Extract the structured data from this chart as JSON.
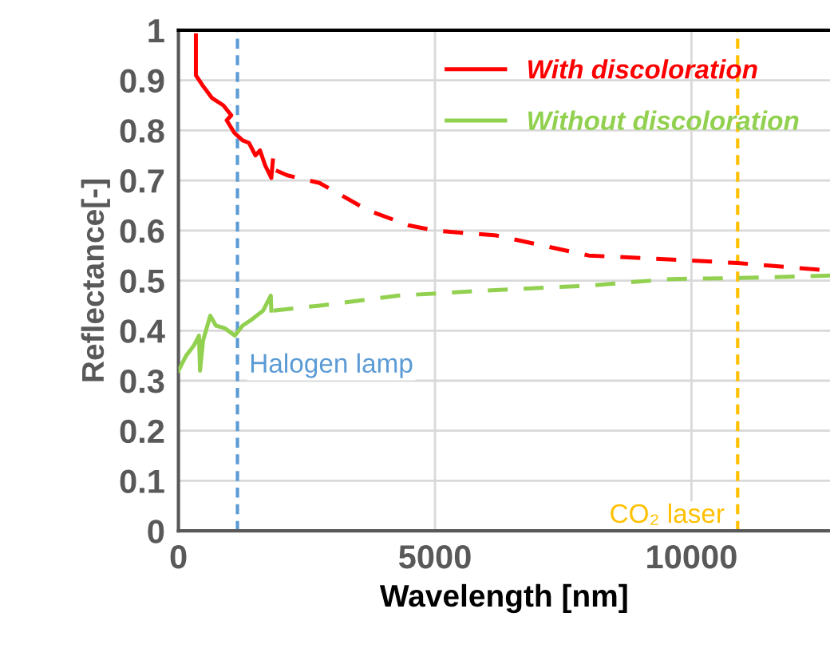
{
  "chart_data": {
    "type": "line",
    "xlabel": "Wavelength [nm]",
    "ylabel": "Reflectance[-]",
    "xlim": [
      0,
      12700
    ],
    "xticks": [
      0,
      5000,
      10000
    ],
    "ylim": [
      0,
      1
    ],
    "yticks": [
      0,
      0.1,
      0.2,
      0.3,
      0.4,
      0.5,
      0.6,
      0.7,
      0.8,
      0.9,
      1
    ],
    "grid": true,
    "legend": "top right",
    "series": [
      {
        "name": "With discoloration",
        "color": "#ff0000",
        "line_style": "solid",
        "x": [
          340,
          340,
          470,
          650,
          875,
          1030,
          940,
          1090,
          1250,
          1375,
          1500,
          1590,
          1690,
          1810,
          1840
        ],
        "values": [
          0.99,
          0.91,
          0.89,
          0.865,
          0.85,
          0.83,
          0.82,
          0.795,
          0.78,
          0.775,
          0.75,
          0.76,
          0.73,
          0.705,
          0.74
        ]
      },
      {
        "name": "Without discoloration",
        "color": "#92d050",
        "line_style": "solid",
        "x": [
          0,
          150,
          300,
          400,
          420,
          480,
          620,
          730,
          900,
          1100,
          1250,
          1400,
          1650,
          1800,
          1810
        ],
        "values": [
          0.32,
          0.35,
          0.37,
          0.39,
          0.32,
          0.38,
          0.43,
          0.41,
          0.405,
          0.39,
          0.41,
          0.42,
          0.44,
          0.47,
          0.44
        ]
      },
      {
        "color": "#ff0000",
        "line_style": "dashed",
        "x": [
          1900,
          2125,
          2750,
          3700,
          4500,
          5000,
          6200,
          8000,
          10000,
          10900,
          12700
        ],
        "values": [
          0.72,
          0.71,
          0.695,
          0.64,
          0.61,
          0.6,
          0.59,
          0.55,
          0.54,
          0.535,
          0.52
        ]
      },
      {
        "color": "#92d050",
        "line_style": "dashed",
        "x": [
          1850,
          2750,
          4300,
          6000,
          8000,
          9600,
          10900,
          12700
        ],
        "values": [
          0.44,
          0.45,
          0.47,
          0.48,
          0.49,
          0.503,
          0.505,
          0.51
        ]
      }
    ],
    "ref_lines": [
      {
        "axis": "x",
        "value": 1150,
        "label": "Halogen lamp",
        "color": "#5b9bd5",
        "line_style": "dashed"
      },
      {
        "axis": "x",
        "value": 10900,
        "label": "CO₂ laser",
        "color": "#ffc000",
        "line_style": "dashed"
      }
    ]
  }
}
